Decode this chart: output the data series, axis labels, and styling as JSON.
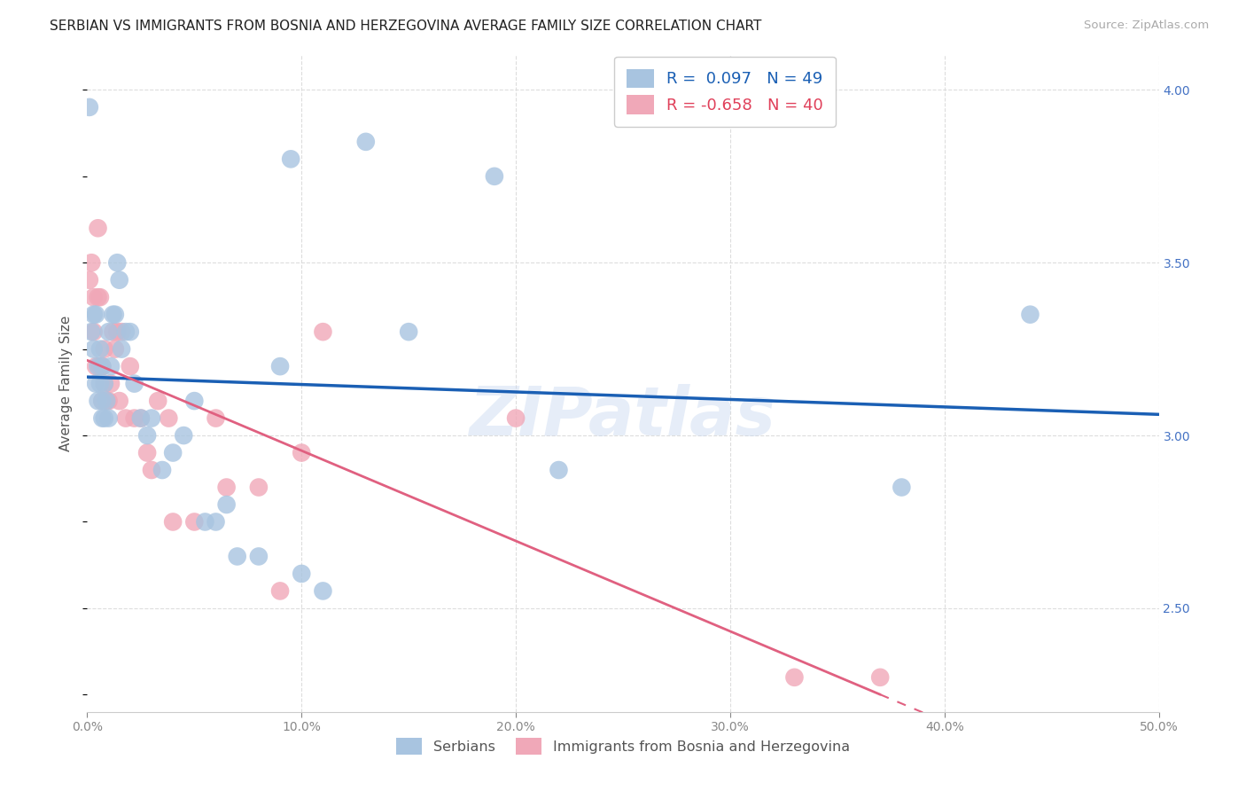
{
  "title": "SERBIAN VS IMMIGRANTS FROM BOSNIA AND HERZEGOVINA AVERAGE FAMILY SIZE CORRELATION CHART",
  "source": "Source: ZipAtlas.com",
  "ylabel": "Average Family Size",
  "xlim": [
    0.0,
    0.5
  ],
  "ylim": [
    2.2,
    4.1
  ],
  "right_yticks": [
    2.5,
    3.0,
    3.5,
    4.0
  ],
  "xtick_labels": [
    "0.0%",
    "10.0%",
    "20.0%",
    "30.0%",
    "40.0%",
    "50.0%"
  ],
  "xtick_positions": [
    0.0,
    0.1,
    0.2,
    0.3,
    0.4,
    0.5
  ],
  "r_serbian": 0.097,
  "n_serbian": 49,
  "r_bosnian": -0.658,
  "n_bosnian": 40,
  "serbian_color": "#a8c4e0",
  "bosnian_color": "#f0a8b8",
  "line_serbian_color": "#1a5fb4",
  "line_bosnian_color": "#e06080",
  "watermark": "ZIPatlas",
  "background_color": "#ffffff",
  "grid_color": "#dddddd",
  "serbian_x": [
    0.001,
    0.002,
    0.003,
    0.003,
    0.004,
    0.004,
    0.005,
    0.005,
    0.006,
    0.006,
    0.007,
    0.007,
    0.007,
    0.008,
    0.008,
    0.009,
    0.01,
    0.01,
    0.011,
    0.012,
    0.013,
    0.014,
    0.015,
    0.016,
    0.018,
    0.02,
    0.022,
    0.025,
    0.028,
    0.03,
    0.035,
    0.04,
    0.045,
    0.05,
    0.055,
    0.06,
    0.065,
    0.07,
    0.08,
    0.09,
    0.095,
    0.1,
    0.11,
    0.13,
    0.15,
    0.19,
    0.22,
    0.38,
    0.44
  ],
  "serbian_y": [
    3.95,
    3.3,
    3.35,
    3.25,
    3.15,
    3.35,
    3.2,
    3.1,
    3.15,
    3.25,
    3.1,
    3.05,
    3.2,
    3.05,
    3.15,
    3.1,
    3.05,
    3.3,
    3.2,
    3.35,
    3.35,
    3.5,
    3.45,
    3.25,
    3.3,
    3.3,
    3.15,
    3.05,
    3.0,
    3.05,
    2.9,
    2.95,
    3.0,
    3.1,
    2.75,
    2.75,
    2.8,
    2.65,
    2.65,
    3.2,
    3.8,
    2.6,
    2.55,
    3.85,
    3.3,
    3.75,
    2.9,
    2.85,
    3.35
  ],
  "bosnian_x": [
    0.001,
    0.002,
    0.003,
    0.003,
    0.004,
    0.005,
    0.005,
    0.006,
    0.006,
    0.007,
    0.007,
    0.008,
    0.008,
    0.009,
    0.01,
    0.011,
    0.012,
    0.013,
    0.014,
    0.015,
    0.016,
    0.018,
    0.02,
    0.022,
    0.025,
    0.028,
    0.03,
    0.033,
    0.038,
    0.04,
    0.05,
    0.06,
    0.065,
    0.08,
    0.09,
    0.1,
    0.11,
    0.2,
    0.33,
    0.37
  ],
  "bosnian_y": [
    3.45,
    3.5,
    3.4,
    3.3,
    3.2,
    3.6,
    3.4,
    3.4,
    3.2,
    3.2,
    3.1,
    3.15,
    3.25,
    3.1,
    3.1,
    3.15,
    3.3,
    3.25,
    3.3,
    3.1,
    3.3,
    3.05,
    3.2,
    3.05,
    3.05,
    2.95,
    2.9,
    3.1,
    3.05,
    2.75,
    2.75,
    3.05,
    2.85,
    2.85,
    2.55,
    2.95,
    3.3,
    3.05,
    2.3,
    2.3
  ]
}
